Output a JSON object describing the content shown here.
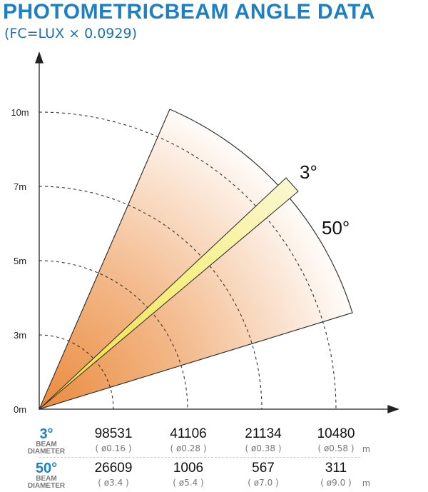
{
  "title": "PHOTOMETRICBEAM ANGLE DATA",
  "subtitle": "(FC=LUX × 0.0929)",
  "diagram": {
    "y_labels": [
      "10m",
      "7m",
      "5m",
      "3m",
      "0m"
    ],
    "narrow_beam_label": "3°",
    "wide_beam_label": "50°",
    "colors": {
      "wide_beam_inner": "#ea8a3c",
      "wide_beam_outer": "#ffffff",
      "narrow_beam": "#f5eb55",
      "axis": "#222222",
      "title_blue": "#1e7fc3"
    }
  },
  "table": {
    "beam_word": "BEAM",
    "diameter_word": "DIAMETER",
    "unit": "m",
    "rows": [
      {
        "angle": "3°",
        "lux": [
          "98531",
          "41106",
          "21134",
          "10480"
        ],
        "diameter": [
          "( ø0.16 )",
          "( ø0.28 )",
          "( ø0.38 )",
          "( ø0.58 )"
        ]
      },
      {
        "angle": "50°",
        "lux": [
          "26609",
          "1006",
          "567",
          "311"
        ],
        "diameter": [
          "( ø3.4 )",
          "( ø5.4 )",
          "( ø7.0 )",
          "( ø9.0 )"
        ]
      }
    ]
  }
}
